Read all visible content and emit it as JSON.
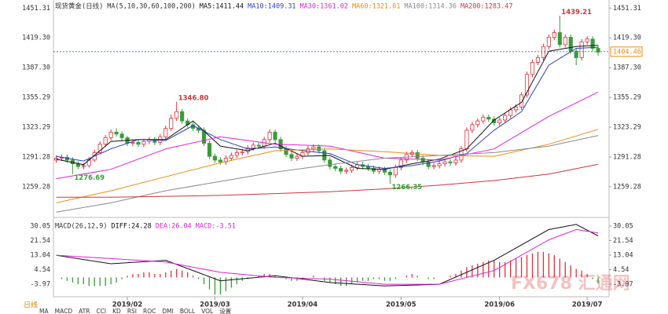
{
  "chart_data": [
    {
      "type": "candlestick",
      "title": "现货黄金(日线)",
      "indicator_label": "MA(5,10,30,60,100,200)",
      "xlim": [
        -0.5,
        101
      ],
      "ylim": [
        1228,
        1460
      ],
      "xticks": [
        {
          "value": 13,
          "label": "2019/02"
        },
        {
          "value": 29,
          "label": "2019/03"
        },
        {
          "value": 45,
          "label": "2019/04"
        },
        {
          "value": 63,
          "label": "2019/05"
        },
        {
          "value": 81,
          "label": "2019/06"
        },
        {
          "value": 97,
          "label": "2019/07"
        }
      ],
      "yticks": [
        1451.31,
        {
          "value": 1419.3,
          "label": "1419.30"
        },
        {
          "value": 1387.3,
          "label": "1387.30"
        },
        1355.29,
        1323.29,
        1291.28,
        1259.28
      ],
      "up_color": "#e0303a",
      "down_color": "#3a9a3a",
      "candles": [
        [
          1288,
          1293,
          1285,
          1290
        ],
        [
          1290,
          1294,
          1287,
          1291
        ],
        [
          1291,
          1294,
          1285,
          1288
        ],
        [
          1288,
          1291,
          1276.69,
          1284
        ],
        [
          1284,
          1287,
          1278,
          1281
        ],
        [
          1281,
          1285,
          1278,
          1282
        ],
        [
          1282,
          1291,
          1280,
          1288
        ],
        [
          1288,
          1299,
          1286,
          1296
        ],
        [
          1296,
          1308,
          1294,
          1305
        ],
        [
          1305,
          1315,
          1302,
          1312
        ],
        [
          1312,
          1321,
          1309,
          1318
        ],
        [
          1318,
          1322,
          1313,
          1316
        ],
        [
          1316,
          1319,
          1309,
          1312
        ],
        [
          1312,
          1314,
          1303,
          1306
        ],
        [
          1306,
          1310,
          1303,
          1307
        ],
        [
          1307,
          1310,
          1302,
          1305
        ],
        [
          1305,
          1311,
          1302,
          1308
        ],
        [
          1308,
          1313,
          1305,
          1310
        ],
        [
          1310,
          1313,
          1304,
          1307
        ],
        [
          1307,
          1316,
          1304,
          1313
        ],
        [
          1313,
          1325,
          1310,
          1322
        ],
        [
          1322,
          1337,
          1319,
          1333
        ],
        [
          1333,
          1346.8,
          1330,
          1340
        ],
        [
          1340,
          1343,
          1327,
          1330
        ],
        [
          1330,
          1333,
          1323,
          1326
        ],
        [
          1326,
          1329,
          1319,
          1322
        ],
        [
          1322,
          1325,
          1317,
          1320
        ],
        [
          1320,
          1323,
          1303,
          1306
        ],
        [
          1306,
          1309,
          1289,
          1292
        ],
        [
          1292,
          1295,
          1285,
          1288
        ],
        [
          1288,
          1291,
          1283,
          1286
        ],
        [
          1286,
          1293,
          1283,
          1290
        ],
        [
          1290,
          1296,
          1287,
          1293
        ],
        [
          1293,
          1299,
          1290,
          1296
        ],
        [
          1296,
          1300,
          1293,
          1297
        ],
        [
          1297,
          1304,
          1294,
          1301
        ],
        [
          1301,
          1307,
          1298,
          1304
        ],
        [
          1304,
          1307,
          1300,
          1303
        ],
        [
          1303,
          1313,
          1300,
          1310
        ],
        [
          1310,
          1321,
          1307,
          1318
        ],
        [
          1318,
          1321,
          1307,
          1310
        ],
        [
          1310,
          1313,
          1297,
          1300
        ],
        [
          1300,
          1303,
          1291,
          1294
        ],
        [
          1294,
          1297,
          1287,
          1290
        ],
        [
          1290,
          1295,
          1287,
          1292
        ],
        [
          1292,
          1299,
          1289,
          1296
        ],
        [
          1296,
          1303,
          1293,
          1300
        ],
        [
          1300,
          1305,
          1297,
          1302
        ],
        [
          1302,
          1305,
          1295,
          1298
        ],
        [
          1298,
          1301,
          1285,
          1288
        ],
        [
          1288,
          1291,
          1278,
          1281
        ],
        [
          1281,
          1284,
          1276,
          1279
        ],
        [
          1279,
          1282,
          1273,
          1276
        ],
        [
          1276,
          1280,
          1273,
          1277
        ],
        [
          1277,
          1283,
          1274,
          1280
        ],
        [
          1280,
          1286,
          1277,
          1283
        ],
        [
          1283,
          1286,
          1278,
          1281
        ],
        [
          1281,
          1284,
          1276,
          1279
        ],
        [
          1279,
          1282,
          1273,
          1276
        ],
        [
          1276,
          1281,
          1273,
          1278
        ],
        [
          1278,
          1281,
          1272,
          1275
        ],
        [
          1275,
          1278,
          1266.35,
          1272
        ],
        [
          1272,
          1283,
          1269,
          1280
        ],
        [
          1280,
          1291,
          1277,
          1288
        ],
        [
          1288,
          1297,
          1285,
          1294
        ],
        [
          1294,
          1299,
          1291,
          1296
        ],
        [
          1296,
          1299,
          1287,
          1290
        ],
        [
          1290,
          1293,
          1283,
          1286
        ],
        [
          1286,
          1289,
          1278,
          1281
        ],
        [
          1281,
          1285,
          1278,
          1282
        ],
        [
          1282,
          1287,
          1279,
          1284
        ],
        [
          1284,
          1289,
          1281,
          1286
        ],
        [
          1286,
          1289,
          1282,
          1285
        ],
        [
          1285,
          1291,
          1282,
          1288
        ],
        [
          1288,
          1303,
          1285,
          1300
        ],
        [
          1300,
          1323,
          1297,
          1320
        ],
        [
          1320,
          1329,
          1317,
          1326
        ],
        [
          1326,
          1333,
          1323,
          1330
        ],
        [
          1330,
          1337,
          1327,
          1334
        ],
        [
          1334,
          1337,
          1329,
          1332
        ],
        [
          1332,
          1335,
          1325,
          1328
        ],
        [
          1328,
          1334,
          1325,
          1331
        ],
        [
          1331,
          1339,
          1328,
          1336
        ],
        [
          1336,
          1345,
          1333,
          1342
        ],
        [
          1342,
          1348,
          1339,
          1345
        ],
        [
          1345,
          1361,
          1342,
          1358
        ],
        [
          1358,
          1383,
          1355,
          1380
        ],
        [
          1380,
          1396,
          1377,
          1393
        ],
        [
          1393,
          1401,
          1390,
          1398
        ],
        [
          1398,
          1413,
          1395,
          1410
        ],
        [
          1410,
          1423,
          1407,
          1420
        ],
        [
          1420,
          1428,
          1417,
          1425
        ],
        [
          1425,
          1439.21,
          1409,
          1412
        ],
        [
          1412,
          1423,
          1409,
          1420
        ],
        [
          1420,
          1423,
          1402,
          1405
        ],
        [
          1405,
          1408,
          1390,
          1398
        ],
        [
          1398,
          1418,
          1395,
          1415
        ],
        [
          1415,
          1421,
          1412,
          1418
        ],
        [
          1418,
          1421,
          1405,
          1408
        ],
        [
          1408,
          1411,
          1400,
          1404
        ]
      ],
      "series": [
        {
          "name": "MA5:1411.44",
          "color": "#111111",
          "x": [
            0,
            5,
            10,
            15,
            20,
            25,
            30,
            35,
            40,
            45,
            50,
            55,
            60,
            65,
            70,
            75,
            80,
            85,
            90,
            95,
            99
          ],
          "values": [
            1289,
            1283,
            1308,
            1310,
            1310,
            1330,
            1303,
            1298,
            1306,
            1292,
            1293,
            1279,
            1278,
            1284,
            1289,
            1300,
            1331,
            1350,
            1405,
            1410,
            1411.44
          ]
        },
        {
          "name": "MA10:1409.31",
          "color": "#2a3fc0",
          "x": [
            0,
            5,
            10,
            15,
            20,
            25,
            30,
            35,
            40,
            45,
            50,
            55,
            60,
            65,
            70,
            75,
            80,
            85,
            90,
            95,
            99
          ],
          "values": [
            1292,
            1287,
            1300,
            1310,
            1309,
            1325,
            1310,
            1300,
            1302,
            1298,
            1295,
            1283,
            1279,
            1282,
            1287,
            1295,
            1320,
            1340,
            1390,
            1408,
            1409.31
          ]
        },
        {
          "name": "MA30:1361.02",
          "color": "#e020d8",
          "x": [
            0,
            10,
            20,
            30,
            40,
            50,
            60,
            70,
            80,
            90,
            99
          ],
          "values": [
            1268,
            1278,
            1300,
            1313,
            1305,
            1303,
            1290,
            1288,
            1300,
            1335,
            1361.02
          ]
        },
        {
          "name": "MA60:1321.01",
          "color": "#f08a10",
          "x": [
            0,
            10,
            20,
            30,
            40,
            50,
            60,
            70,
            80,
            90,
            99
          ],
          "values": [
            1242,
            1255,
            1270,
            1285,
            1298,
            1300,
            1297,
            1293,
            1292,
            1305,
            1321.01
          ]
        },
        {
          "name": "MA100:1314.36",
          "color": "#8a8a8a",
          "x": [
            0,
            10,
            20,
            30,
            40,
            50,
            60,
            70,
            80,
            90,
            99
          ],
          "values": [
            1232,
            1242,
            1255,
            1265,
            1275,
            1283,
            1290,
            1293,
            1296,
            1303,
            1314.36
          ]
        },
        {
          "name": "MA200:1283.47",
          "color": "#c8383c",
          "x": [
            0,
            10,
            20,
            30,
            40,
            50,
            60,
            70,
            80,
            90,
            99
          ],
          "values": [
            1248,
            1248,
            1249,
            1250,
            1252,
            1254,
            1257,
            1261,
            1266,
            1273,
            1283.47
          ]
        }
      ],
      "last_price": 1404.46,
      "last_price_color": "#f08a10",
      "annotations": [
        {
          "x": 3,
          "value": 1276.69,
          "label": "1276.69",
          "color": "#3a9a3a",
          "side": "below"
        },
        {
          "x": 22,
          "value": 1346.8,
          "label": "1346.80",
          "color": "#c8383c",
          "side": "above"
        },
        {
          "x": 61,
          "value": 1266.35,
          "label": "1266.35",
          "color": "#3a9a3a",
          "side": "below"
        },
        {
          "x": 92,
          "value": 1439.21,
          "label": "1439.21",
          "color": "#c8383c",
          "side": "above"
        }
      ]
    },
    {
      "type": "macd",
      "indicator_label": "MACD(26,12,9)",
      "xlim": [
        -0.5,
        101
      ],
      "ylim": [
        -11.3,
        33.7
      ],
      "yticks": [
        30.05,
        21.54,
        13.04,
        4.54,
        -3.97
      ],
      "series": [
        {
          "name": "DIFF:24.28",
          "color": "#111111",
          "x": [
            0,
            10,
            20,
            30,
            40,
            50,
            60,
            70,
            80,
            90,
            95,
            99
          ],
          "values": [
            13,
            8,
            10,
            -2,
            1,
            -3,
            -5,
            -4,
            10,
            28,
            31,
            24.28
          ]
        },
        {
          "name": "DEA:26.04",
          "color": "#e020d8",
          "x": [
            0,
            10,
            20,
            30,
            40,
            50,
            60,
            70,
            80,
            90,
            95,
            99
          ],
          "values": [
            13,
            11,
            9,
            3,
            0,
            -1,
            -4,
            -4,
            4,
            22,
            28,
            26.04
          ]
        }
      ],
      "histogram": {
        "name": "MACD:-3.51",
        "color": "#e020d8",
        "up_color": "#e0303a",
        "down_color": "#3a9a3a",
        "values": [
          0,
          -1,
          -2,
          -3,
          -4,
          -4,
          -5,
          -5,
          -5,
          -5,
          -4,
          -3,
          -1,
          1,
          2,
          2,
          3,
          3,
          2,
          2,
          3,
          4,
          5,
          4,
          3,
          1,
          -1,
          -4,
          -7,
          -10,
          -10,
          -8,
          -6,
          -4,
          -2,
          -1,
          0,
          1,
          2,
          2,
          1,
          0,
          -1,
          -2,
          -2,
          -1,
          0,
          1,
          0,
          -2,
          -3,
          -4,
          -5,
          -5,
          -4,
          -3,
          -2,
          -2,
          -1,
          -1,
          -2,
          -2,
          -1,
          0,
          1,
          2,
          1,
          0,
          -1,
          -1,
          0,
          0,
          1,
          2,
          4,
          6,
          7,
          8,
          9,
          10,
          10,
          9,
          9,
          10,
          11,
          12,
          13,
          14,
          15,
          15,
          14,
          13,
          11,
          9,
          7,
          5,
          4,
          2,
          -1,
          -3.51
        ]
      }
    }
  ],
  "period_tab": "日线",
  "toolbar": [
    "MA",
    "MACD",
    "ATR",
    "CCI",
    "KD",
    "RSI",
    "ROC",
    "DMI",
    "BOLL",
    "VOL",
    "设置"
  ],
  "watermark": "FX678 汇通网"
}
